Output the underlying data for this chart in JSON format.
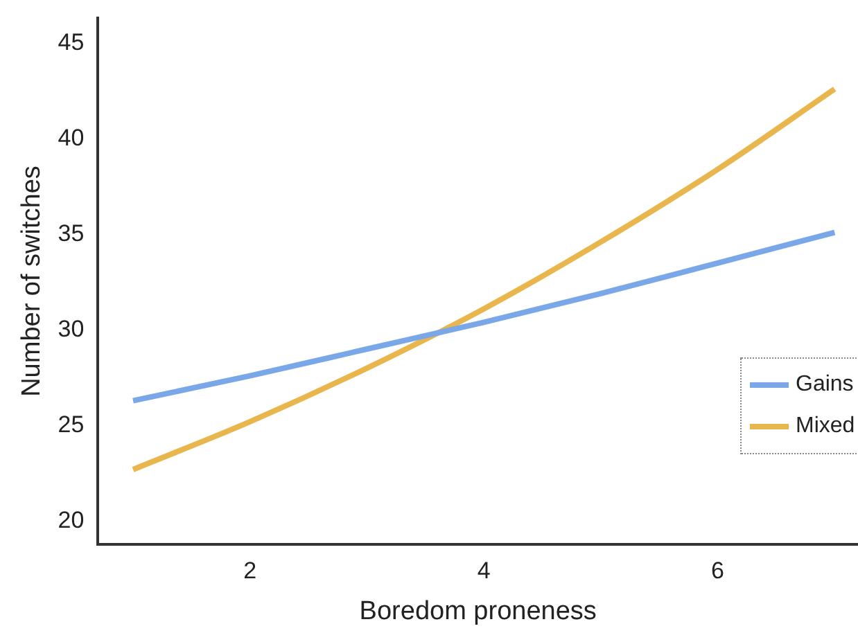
{
  "chart_data": {
    "type": "line",
    "xlabel": "Boredom proneness",
    "ylabel": "Number of switches",
    "x": [
      1,
      2,
      3,
      4,
      5,
      6,
      7
    ],
    "series": [
      {
        "name": "Gains",
        "color": "#79a7e8",
        "values": [
          26.3,
          27.6,
          29.0,
          30.4,
          31.9,
          33.5,
          35.1
        ]
      },
      {
        "name": "Mixed",
        "color": "#e8b64c",
        "values": [
          22.7,
          25.2,
          28.0,
          31.1,
          34.6,
          38.4,
          42.6
        ]
      }
    ],
    "xlim": [
      0.7,
      7.2
    ],
    "xticks": [
      2,
      4,
      6
    ],
    "ylim": [
      18.8,
      46.3
    ],
    "yticks": [
      20,
      25,
      30,
      35,
      40,
      45
    ],
    "grid": false,
    "legend": "right",
    "marker": "none",
    "line_style": "solid"
  }
}
